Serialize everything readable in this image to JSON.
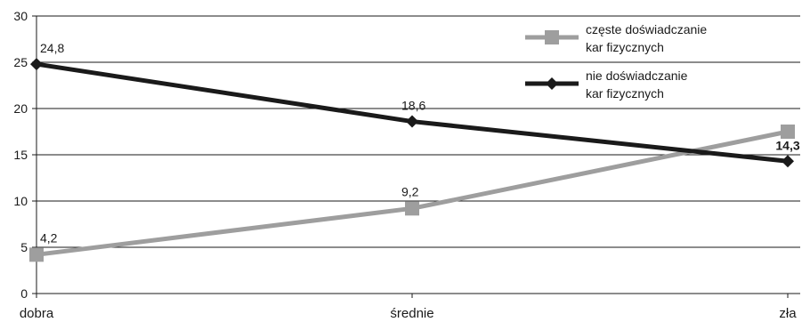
{
  "chart_data": {
    "type": "line",
    "categories": [
      "dobra",
      "średnie",
      "zła"
    ],
    "ylim": [
      0,
      30
    ],
    "yticks": [
      0,
      5,
      10,
      15,
      20,
      25,
      30
    ],
    "grid": true,
    "legend_position": "top-right",
    "series": [
      {
        "name_lines": [
          "częste doświadczanie",
          "kar fizycznych"
        ],
        "values": [
          4.2,
          9.2,
          17.5
        ],
        "labels": [
          "4,2",
          "9,2",
          ""
        ],
        "color": "#9e9e9e",
        "marker": "square"
      },
      {
        "name_lines": [
          "nie doświadczanie",
          "kar fizycznych"
        ],
        "values": [
          24.8,
          18.6,
          14.3
        ],
        "labels": [
          "24,8",
          "18,6",
          "14,3"
        ],
        "color": "#1a1a1a",
        "marker": "diamond"
      }
    ]
  }
}
